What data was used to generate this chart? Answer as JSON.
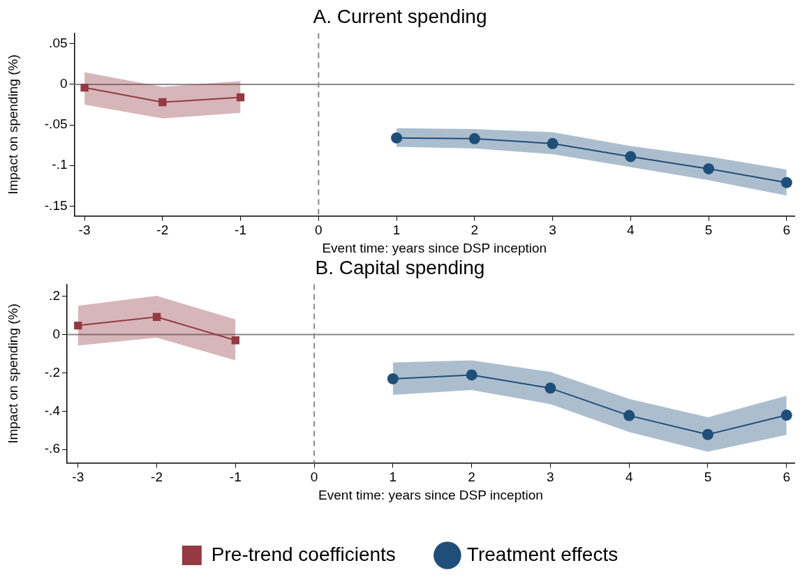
{
  "chart_data": [
    {
      "type": "line",
      "title": "A. Current spending",
      "xlabel": "Event time: years since DSP inception",
      "ylabel": "Impact on spending (%)",
      "xlim": [
        -3.13,
        6.1
      ],
      "xticks": [
        -3,
        -2,
        -1,
        0,
        1,
        2,
        3,
        4,
        5,
        6
      ],
      "ylim": [
        -0.162,
        0.063
      ],
      "yticks": [
        {
          "value": 0.05,
          "label": ".05"
        },
        0,
        {
          "value": -0.05,
          "label": "-.05"
        },
        {
          "value": -0.1,
          "label": "-.1"
        },
        {
          "value": -0.15,
          "label": "-.15"
        }
      ],
      "grid": false,
      "legend": false,
      "line_style": "solid",
      "ref_lines": [
        {
          "axis": "y",
          "value": 0,
          "color": "#888888",
          "line_style": "solid"
        },
        {
          "axis": "x",
          "value": 0,
          "color": "#888888",
          "line_style": "dashed"
        }
      ],
      "series": [
        {
          "color": "#933a42",
          "marker": "square",
          "x": [
            -3,
            -2,
            -1
          ],
          "values": [
            -0.004,
            -0.022,
            -0.016
          ],
          "lower": [
            -0.025,
            -0.042,
            -0.035
          ],
          "upper": [
            0.015,
            -0.003,
            0.004
          ]
        },
        {
          "color": "#1f4e79",
          "marker": "circle",
          "x": [
            1,
            2,
            3,
            4,
            5,
            6
          ],
          "values": [
            -0.066,
            -0.067,
            -0.073,
            -0.089,
            -0.104,
            -0.121
          ],
          "lower": [
            -0.077,
            -0.079,
            -0.086,
            -0.102,
            -0.118,
            -0.137
          ],
          "upper": [
            -0.054,
            -0.055,
            -0.059,
            -0.076,
            -0.089,
            -0.105
          ]
        }
      ]
    },
    {
      "type": "line",
      "title": "B. Capital spending",
      "xlabel": "Event time: years since DSP inception",
      "ylabel": "Impact on spending (%)",
      "xlim": [
        -3.14,
        6.1
      ],
      "xticks": [
        -3,
        -2,
        -1,
        0,
        1,
        2,
        3,
        4,
        5,
        6
      ],
      "ylim": [
        -0.67,
        0.262
      ],
      "yticks": [
        {
          "value": 0.2,
          "label": ".2"
        },
        0,
        {
          "value": -0.2,
          "label": "-.2"
        },
        {
          "value": -0.4,
          "label": "-.4"
        },
        {
          "value": -0.6,
          "label": "-.6"
        }
      ],
      "grid": false,
      "legend": "bottom",
      "line_style": "solid",
      "ref_lines": [
        {
          "axis": "y",
          "value": 0,
          "color": "#888888",
          "line_style": "solid"
        },
        {
          "axis": "x",
          "value": 0,
          "color": "#888888",
          "line_style": "dashed"
        }
      ],
      "series": [
        {
          "name": "Pre-trend coefficients",
          "color": "#933a42",
          "marker": "square",
          "x": [
            -3,
            -2,
            -1
          ],
          "values": [
            0.047,
            0.092,
            -0.03
          ],
          "lower": [
            -0.057,
            -0.016,
            -0.135
          ],
          "upper": [
            0.15,
            0.202,
            0.079
          ]
        },
        {
          "name": "Treatment effects",
          "color": "#1f4e79",
          "marker": "circle",
          "x": [
            1,
            2,
            3,
            4,
            5,
            6
          ],
          "values": [
            -0.231,
            -0.211,
            -0.28,
            -0.423,
            -0.522,
            -0.421
          ],
          "lower": [
            -0.315,
            -0.29,
            -0.363,
            -0.509,
            -0.612,
            -0.524
          ],
          "upper": [
            -0.146,
            -0.135,
            -0.195,
            -0.336,
            -0.432,
            -0.32
          ]
        }
      ]
    }
  ]
}
